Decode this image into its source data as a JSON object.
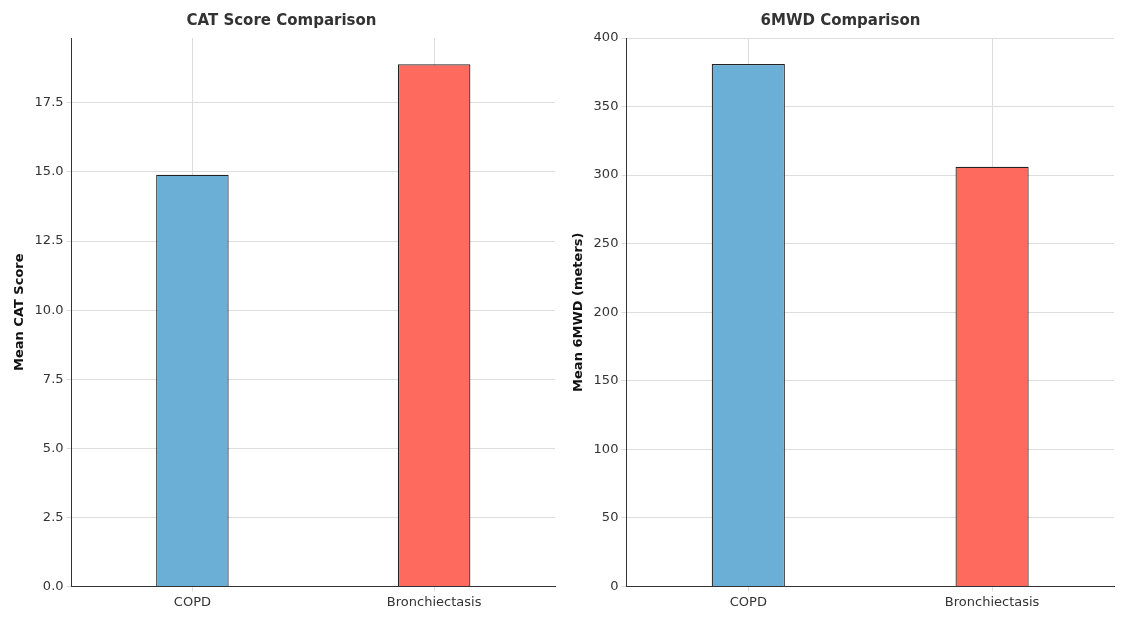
{
  "chart_data": [
    {
      "type": "bar",
      "title": "CAT Score Comparison",
      "ylabel": "Mean CAT Score",
      "categories": [
        "COPD",
        "Bronchiectasis"
      ],
      "values": [
        14.9,
        18.9
      ],
      "colors": [
        "#6baed6",
        "#fe6a5e"
      ],
      "ylim": [
        0,
        19.85
      ],
      "yticks": [
        {
          "value": 0,
          "label": "0.0"
        },
        {
          "value": 2.5,
          "label": "2.5"
        },
        {
          "value": 5,
          "label": "5.0"
        },
        {
          "value": 7.5,
          "label": "7.5"
        },
        {
          "value": 10,
          "label": "10.0"
        },
        {
          "value": 12.5,
          "label": "12.5"
        },
        {
          "value": 15,
          "label": "15.0"
        },
        {
          "value": 17.5,
          "label": "17.5"
        }
      ],
      "grid": true
    },
    {
      "type": "bar",
      "title": "6MWD Comparison",
      "ylabel": "Mean 6MWD (meters)",
      "categories": [
        "COPD",
        "Bronchiectasis"
      ],
      "values": [
        381,
        306
      ],
      "colors": [
        "#6baed6",
        "#fe6a5e"
      ],
      "ylim": [
        0,
        400
      ],
      "yticks": [
        0,
        50,
        100,
        150,
        200,
        250,
        300,
        350,
        400
      ],
      "grid": true
    }
  ]
}
